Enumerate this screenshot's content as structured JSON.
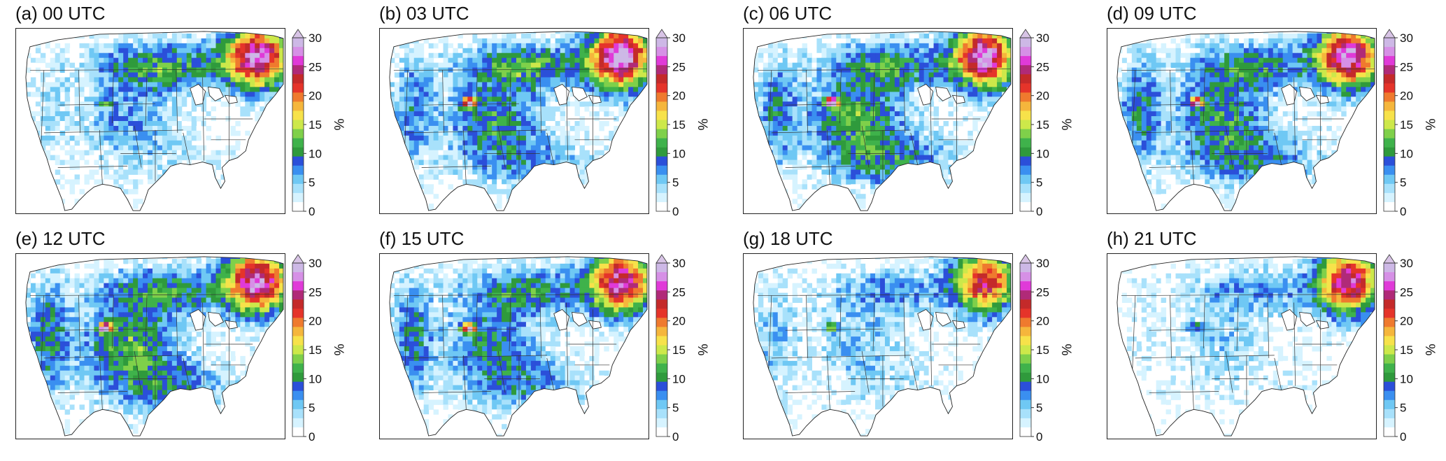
{
  "figure": {
    "panels": [
      {
        "id": "a",
        "title": "(a) 00 UTC",
        "pattern": {
          "northeast": 0.9,
          "northern_plains": 0.7,
          "central": 0.4,
          "south": 0.2,
          "west": 0.2,
          "hotspot": 0.3
        }
      },
      {
        "id": "b",
        "title": "(b) 03 UTC",
        "pattern": {
          "northeast": 0.95,
          "northern_plains": 0.7,
          "central": 0.6,
          "south": 0.5,
          "west": 0.45,
          "hotspot": 0.85
        }
      },
      {
        "id": "c",
        "title": "(c) 06 UTC",
        "pattern": {
          "northeast": 0.9,
          "northern_plains": 0.65,
          "central": 0.7,
          "south": 0.65,
          "west": 0.5,
          "hotspot": 0.95
        }
      },
      {
        "id": "d",
        "title": "(d) 09 UTC",
        "pattern": {
          "northeast": 0.9,
          "northern_plains": 0.6,
          "central": 0.65,
          "south": 0.6,
          "west": 0.55,
          "hotspot": 0.9
        }
      },
      {
        "id": "e",
        "title": "(e) 12 UTC",
        "pattern": {
          "northeast": 0.9,
          "northern_plains": 0.65,
          "central": 0.7,
          "south": 0.65,
          "west": 0.6,
          "hotspot": 0.9
        }
      },
      {
        "id": "f",
        "title": "(f) 15 UTC",
        "pattern": {
          "northeast": 0.85,
          "northern_plains": 0.6,
          "central": 0.55,
          "south": 0.5,
          "west": 0.55,
          "hotspot": 0.85
        }
      },
      {
        "id": "g",
        "title": "(g) 18 UTC",
        "pattern": {
          "northeast": 0.75,
          "northern_plains": 0.4,
          "central": 0.3,
          "south": 0.2,
          "west": 0.3,
          "hotspot": 0.45
        }
      },
      {
        "id": "h",
        "title": "(h) 21 UTC",
        "pattern": {
          "northeast": 0.85,
          "northern_plains": 0.4,
          "central": 0.25,
          "south": 0.1,
          "west": 0.1,
          "hotspot": 0.3
        }
      }
    ],
    "colorbar": {
      "unit": "%",
      "min": 0,
      "max": 30,
      "ticks": [
        "0",
        "5",
        "10",
        "15",
        "20",
        "25",
        "30"
      ],
      "extend": "max",
      "colors": [
        "#ffffff",
        "#d6f3ff",
        "#a8e1fb",
        "#6fc8f4",
        "#3a8ff0",
        "#2b4fd9",
        "#2f9a3c",
        "#3fb24b",
        "#7fd04a",
        "#cde84a",
        "#f7e24a",
        "#f5b63c",
        "#ef7a2e",
        "#e5342a",
        "#c42a2a",
        "#b02a78",
        "#e03ad8",
        "#d690e6",
        "#cdb8e6"
      ],
      "extend_color": "#d8c4e6"
    }
  }
}
